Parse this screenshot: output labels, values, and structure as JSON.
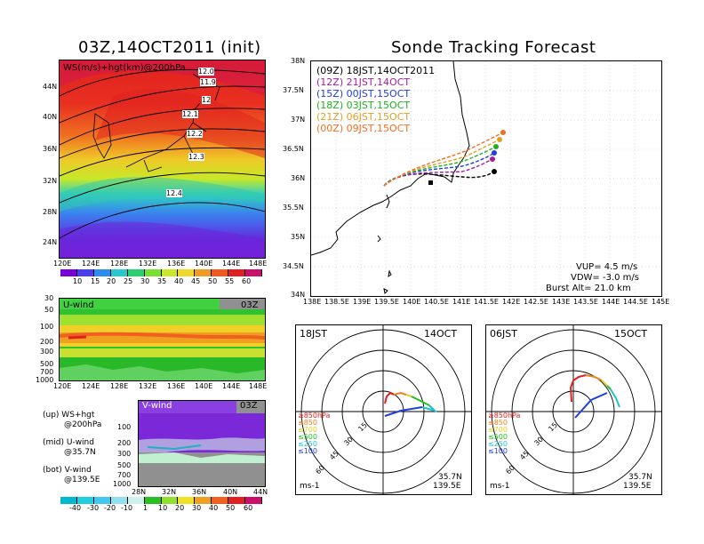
{
  "left_title": "03Z,14OCT2011 (init)",
  "right_title": "Sonde Tracking Forecast",
  "top_map": {
    "label": "WS(m/s)+hgt(km)@200hPa",
    "lat_ticks": [
      "44N",
      "40N",
      "36N",
      "32N",
      "28N",
      "24N"
    ],
    "lon_ticks": [
      "120E",
      "124E",
      "128E",
      "132E",
      "136E",
      "140E",
      "144E",
      "148E"
    ],
    "contours": [
      "12.0",
      "11.9",
      "12",
      "12.1",
      "12.2",
      "12.3",
      "12.4"
    ],
    "colorbar": {
      "labels": [
        "10",
        "15",
        "20",
        "25",
        "30",
        "35",
        "40",
        "45",
        "50",
        "55",
        "60"
      ],
      "colors": [
        "#7a00d8",
        "#4a3cf0",
        "#2a8ef0",
        "#28c8d0",
        "#2ad070",
        "#7ae030",
        "#c8e828",
        "#f0d828",
        "#f09a20",
        "#f05a20",
        "#e02020",
        "#c8106a"
      ]
    }
  },
  "u_panel": {
    "label": "U-wind",
    "time": "03Z",
    "y_ticks": [
      "30",
      "50",
      "100",
      "200",
      "300",
      "500",
      "700",
      "1000"
    ],
    "x_ticks": [
      "120E",
      "124E",
      "128E",
      "132E",
      "136E",
      "140E",
      "144E",
      "148E"
    ]
  },
  "v_panel": {
    "label": "V-wind",
    "time": "03Z",
    "y_ticks": [
      "100",
      "200",
      "300",
      "500",
      "700",
      "1000"
    ],
    "x_ticks": [
      "28N",
      "32N",
      "36N",
      "40N",
      "44N"
    ]
  },
  "legend_notes": [
    {
      "line1": "(up) WS+hgt",
      "line2": "@200hPa"
    },
    {
      "line1": "(mid) U-wind",
      "line2": "@35.7N"
    },
    {
      "line1": "(bot) V-wind",
      "line2": "@139.5E"
    }
  ],
  "bottom_colorbar": {
    "labels": [
      "-40",
      "-30",
      "-20",
      "-10",
      "1",
      "10",
      "20",
      "30",
      "40",
      "50",
      "60"
    ],
    "colors": [
      "#00b8d0",
      "#20d0e0",
      "#40c8f0",
      "#90e0f0",
      "#d0f0f0",
      "#28c020",
      "#90e030",
      "#f0e028",
      "#f0a020",
      "#f06020",
      "#e02020",
      "#c8106a"
    ]
  },
  "track_map": {
    "legend": [
      {
        "text": "(09Z) 18JST,14OCT2011",
        "color": "#000000"
      },
      {
        "text": "(12Z) 21JST,14OCT",
        "color": "#a020a0"
      },
      {
        "text": "(15Z) 00JST,15OCT",
        "color": "#2040e0"
      },
      {
        "text": "(18Z) 03JST,15OCT",
        "color": "#20b020"
      },
      {
        "text": "(21Z) 06JST,15OCT",
        "color": "#e0a020"
      },
      {
        "text": "(00Z) 09JST,15OCT",
        "color": "#f07020"
      }
    ],
    "lat_ticks": [
      "38N",
      "37.5N",
      "37N",
      "36.5N",
      "36N",
      "35.5N",
      "35N",
      "34.5N",
      "34N"
    ],
    "lon_ticks": [
      "138E",
      "138.5E",
      "139E",
      "139.5E",
      "140E",
      "140.5E",
      "141E",
      "141.5E",
      "142E",
      "142.5E",
      "143E",
      "143.5E",
      "144E",
      "144.5E",
      "145E"
    ],
    "info": [
      "VUP= 4.5 m/s",
      "VDW= -3.0 m/s",
      "Burst Alt= 21.0 km"
    ]
  },
  "hodographs": [
    {
      "time": "18JST",
      "date": "14OCT",
      "lat": "35.7N",
      "lon": "139.5E",
      "unit": "ms-1",
      "rings": [
        "15",
        "30",
        "45",
        "60"
      ],
      "levels": [
        {
          "t": "≥850hPa",
          "c": "#e02020"
        },
        {
          "t": "≤850",
          "c": "#f08020"
        },
        {
          "t": "≤700",
          "c": "#e0d020"
        },
        {
          "t": "≤500",
          "c": "#20c020"
        },
        {
          "t": "≤250",
          "c": "#20c0d0"
        },
        {
          "t": "≤100",
          "c": "#2040e0"
        }
      ]
    },
    {
      "time": "06JST",
      "date": "15OCT",
      "lat": "35.7N",
      "lon": "139.5E",
      "unit": "ms-1",
      "rings": [
        "15",
        "30",
        "45",
        "60"
      ],
      "levels": [
        {
          "t": "≥850hPa",
          "c": "#e02020"
        },
        {
          "t": "≤850",
          "c": "#f08020"
        },
        {
          "t": "≤700",
          "c": "#e0d020"
        },
        {
          "t": "≤500",
          "c": "#20c020"
        },
        {
          "t": "≤250",
          "c": "#20c0d0"
        },
        {
          "t": "≤100",
          "c": "#2040e0"
        }
      ]
    }
  ]
}
